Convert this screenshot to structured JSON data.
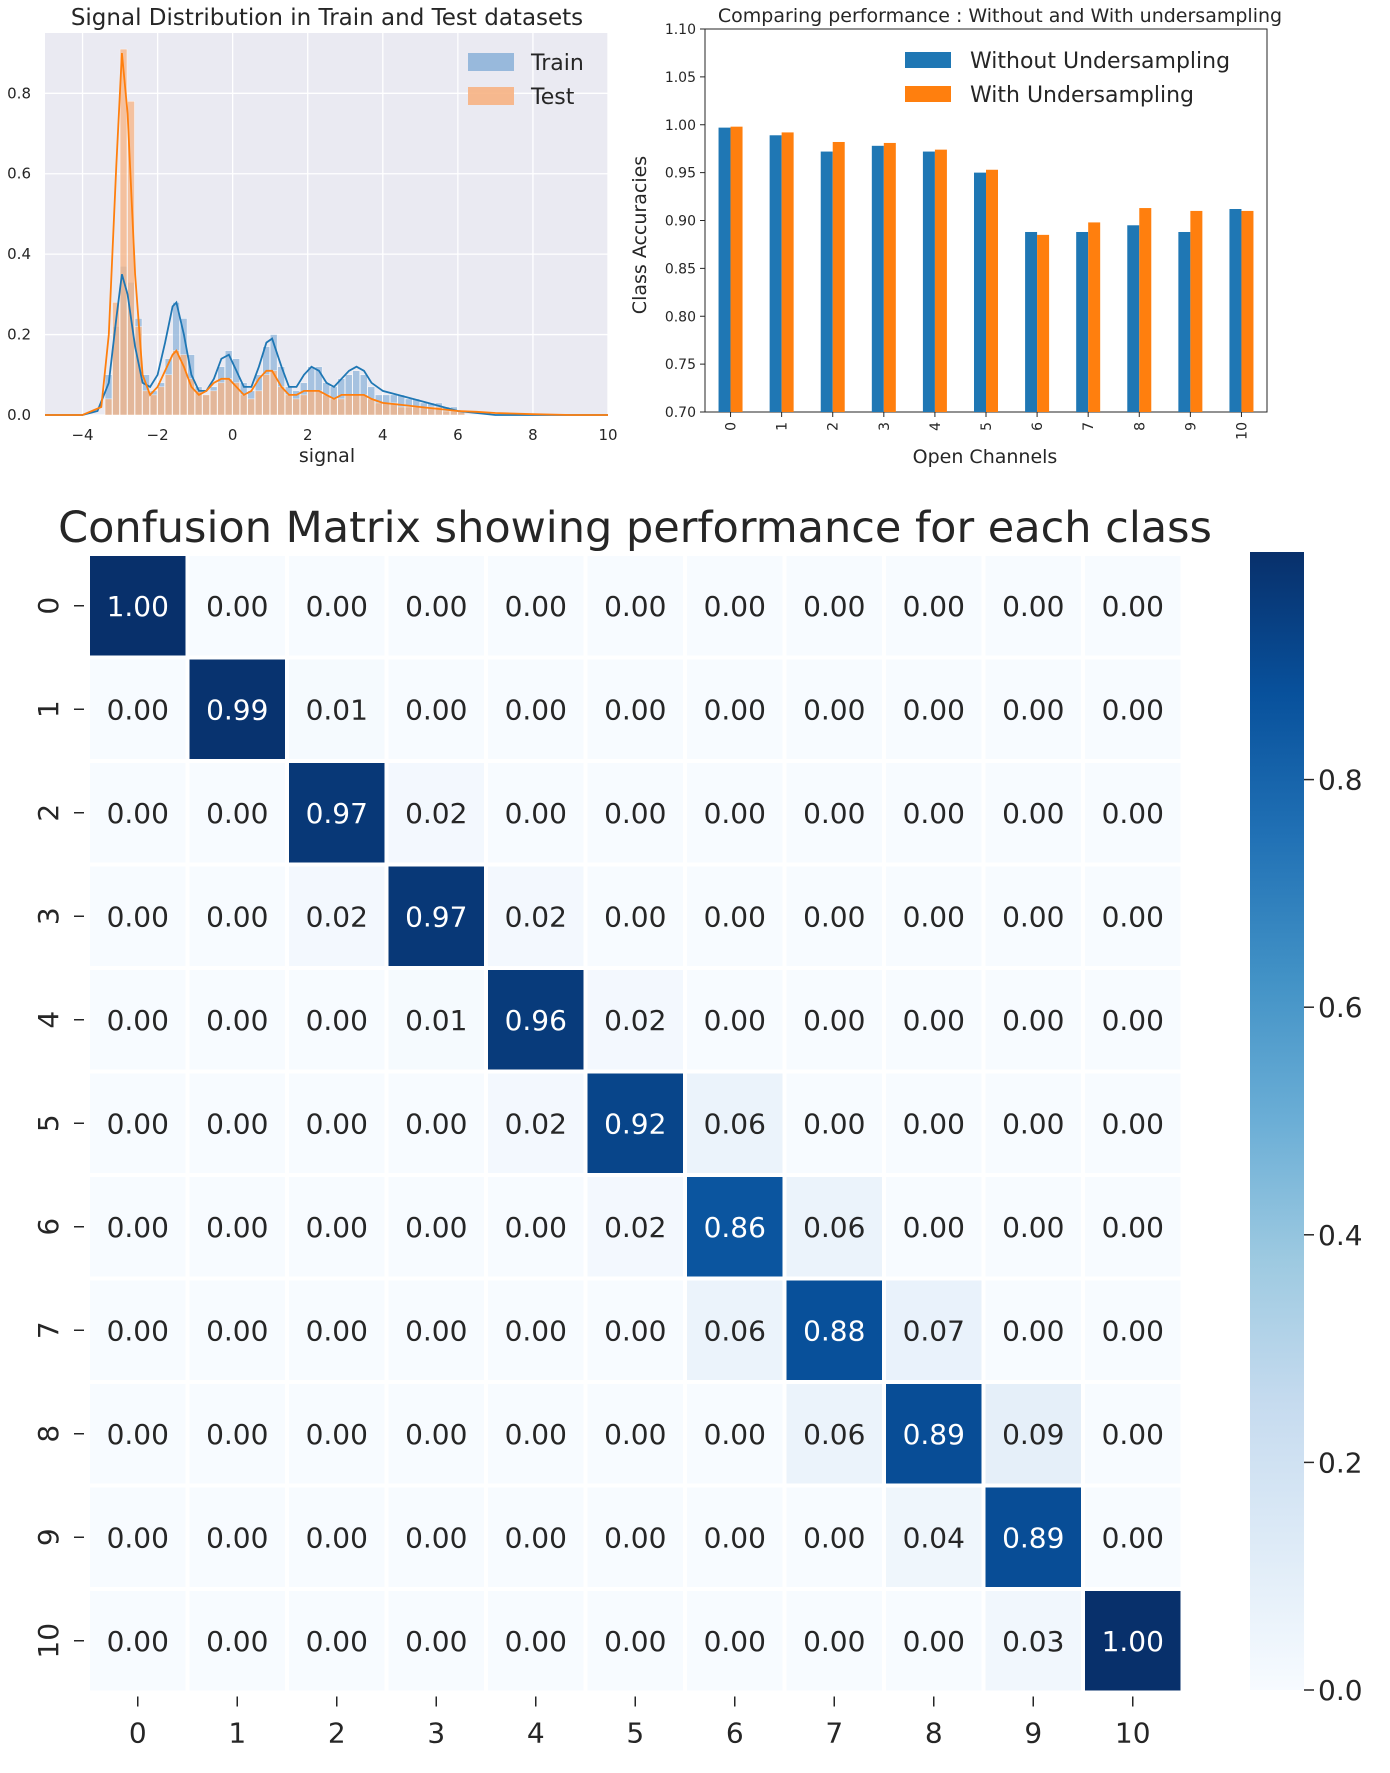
{
  "chart_data": [
    {
      "type": "histogram",
      "title": "Signal Distribution in Train and Test datasets",
      "xlabel": "signal",
      "ylabel": "",
      "xlim": [
        -5,
        10
      ],
      "ylim": [
        0,
        0.95
      ],
      "xticks": [
        -4,
        -2,
        0,
        2,
        4,
        6,
        8,
        10
      ],
      "xtick_labels": [
        "−4",
        "−2",
        "0",
        "2",
        "4",
        "6",
        "8",
        "10"
      ],
      "yticks": [
        0.0,
        0.2,
        0.4,
        0.6,
        0.8
      ],
      "ytick_labels": [
        "0.0",
        "0.2",
        "0.4",
        "0.6",
        "0.8"
      ],
      "grid": true,
      "legend_position": "top-right",
      "series": [
        {
          "name": "Train",
          "color": "#1f77b4",
          "bar_color": "#8fb4d9",
          "bins": [
            [
              -3.4,
              0.1
            ],
            [
              -3.2,
              0.22
            ],
            [
              -3.0,
              0.37
            ],
            [
              -2.8,
              0.33
            ],
            [
              -2.6,
              0.24
            ],
            [
              -2.4,
              0.1
            ],
            [
              -2.2,
              0.06
            ],
            [
              -2.0,
              0.08
            ],
            [
              -1.8,
              0.14
            ],
            [
              -1.6,
              0.28
            ],
            [
              -1.4,
              0.24
            ],
            [
              -1.2,
              0.15
            ],
            [
              -1.0,
              0.07
            ],
            [
              -0.8,
              0.05
            ],
            [
              -0.6,
              0.07
            ],
            [
              -0.4,
              0.12
            ],
            [
              -0.2,
              0.16
            ],
            [
              0.0,
              0.14
            ],
            [
              0.2,
              0.08
            ],
            [
              0.4,
              0.06
            ],
            [
              0.6,
              0.1
            ],
            [
              0.8,
              0.17
            ],
            [
              1.0,
              0.2
            ],
            [
              1.2,
              0.12
            ],
            [
              1.4,
              0.07
            ],
            [
              1.6,
              0.06
            ],
            [
              1.8,
              0.08
            ],
            [
              2.0,
              0.12
            ],
            [
              2.2,
              0.12
            ],
            [
              2.4,
              0.08
            ],
            [
              2.6,
              0.07
            ],
            [
              2.8,
              0.09
            ],
            [
              3.0,
              0.1
            ],
            [
              3.2,
              0.11
            ],
            [
              3.4,
              0.1
            ],
            [
              3.6,
              0.07
            ],
            [
              3.8,
              0.05
            ],
            [
              4.0,
              0.05
            ],
            [
              4.2,
              0.05
            ],
            [
              4.4,
              0.05
            ],
            [
              4.6,
              0.04
            ],
            [
              4.8,
              0.04
            ],
            [
              5.0,
              0.03
            ],
            [
              5.2,
              0.03
            ],
            [
              5.4,
              0.03
            ],
            [
              5.6,
              0.02
            ],
            [
              5.8,
              0.02
            ],
            [
              6.0,
              0.01
            ]
          ],
          "kde": [
            [
              -5.0,
              0.0
            ],
            [
              -4.0,
              0.0
            ],
            [
              -3.6,
              0.01
            ],
            [
              -3.3,
              0.08
            ],
            [
              -3.1,
              0.24
            ],
            [
              -2.95,
              0.35
            ],
            [
              -2.8,
              0.3
            ],
            [
              -2.6,
              0.17
            ],
            [
              -2.4,
              0.08
            ],
            [
              -2.2,
              0.07
            ],
            [
              -2.0,
              0.1
            ],
            [
              -1.8,
              0.18
            ],
            [
              -1.6,
              0.27
            ],
            [
              -1.5,
              0.28
            ],
            [
              -1.3,
              0.2
            ],
            [
              -1.1,
              0.1
            ],
            [
              -0.9,
              0.06
            ],
            [
              -0.7,
              0.06
            ],
            [
              -0.5,
              0.09
            ],
            [
              -0.3,
              0.14
            ],
            [
              -0.1,
              0.15
            ],
            [
              0.1,
              0.11
            ],
            [
              0.3,
              0.07
            ],
            [
              0.5,
              0.07
            ],
            [
              0.7,
              0.12
            ],
            [
              0.9,
              0.18
            ],
            [
              1.05,
              0.19
            ],
            [
              1.3,
              0.12
            ],
            [
              1.5,
              0.07
            ],
            [
              1.7,
              0.07
            ],
            [
              1.9,
              0.1
            ],
            [
              2.1,
              0.12
            ],
            [
              2.3,
              0.11
            ],
            [
              2.5,
              0.08
            ],
            [
              2.7,
              0.07
            ],
            [
              2.9,
              0.09
            ],
            [
              3.1,
              0.11
            ],
            [
              3.3,
              0.12
            ],
            [
              3.5,
              0.11
            ],
            [
              3.7,
              0.08
            ],
            [
              4.0,
              0.06
            ],
            [
              4.4,
              0.05
            ],
            [
              4.8,
              0.04
            ],
            [
              5.2,
              0.03
            ],
            [
              5.6,
              0.02
            ],
            [
              6.0,
              0.01
            ],
            [
              6.5,
              0.005
            ],
            [
              7.0,
              0.0
            ],
            [
              10.0,
              0.0
            ]
          ]
        },
        {
          "name": "Test",
          "color": "#ff7f0e",
          "bar_color": "#f7b383",
          "bins": [
            [
              -3.4,
              0.04
            ],
            [
              -3.2,
              0.28
            ],
            [
              -3.0,
              0.91
            ],
            [
              -2.8,
              0.78
            ],
            [
              -2.6,
              0.22
            ],
            [
              -2.4,
              0.06
            ],
            [
              -2.2,
              0.05
            ],
            [
              -2.0,
              0.07
            ],
            [
              -1.8,
              0.1
            ],
            [
              -1.6,
              0.16
            ],
            [
              -1.4,
              0.15
            ],
            [
              -1.2,
              0.09
            ],
            [
              -1.0,
              0.06
            ],
            [
              -0.8,
              0.05
            ],
            [
              -0.6,
              0.06
            ],
            [
              -0.4,
              0.08
            ],
            [
              -0.2,
              0.09
            ],
            [
              0.0,
              0.08
            ],
            [
              0.2,
              0.05
            ],
            [
              0.4,
              0.04
            ],
            [
              0.6,
              0.06
            ],
            [
              0.8,
              0.1
            ],
            [
              1.0,
              0.11
            ],
            [
              1.2,
              0.07
            ],
            [
              1.4,
              0.05
            ],
            [
              1.6,
              0.04
            ],
            [
              1.8,
              0.05
            ],
            [
              2.0,
              0.06
            ],
            [
              2.2,
              0.06
            ],
            [
              2.4,
              0.05
            ],
            [
              2.6,
              0.04
            ],
            [
              2.8,
              0.04
            ],
            [
              3.0,
              0.05
            ],
            [
              3.2,
              0.05
            ],
            [
              3.4,
              0.05
            ],
            [
              3.6,
              0.04
            ],
            [
              3.8,
              0.03
            ],
            [
              4.0,
              0.03
            ],
            [
              4.2,
              0.03
            ],
            [
              4.4,
              0.02
            ],
            [
              4.6,
              0.02
            ],
            [
              4.8,
              0.02
            ],
            [
              5.0,
              0.02
            ],
            [
              5.2,
              0.02
            ],
            [
              5.4,
              0.02
            ],
            [
              5.6,
              0.01
            ],
            [
              5.8,
              0.01
            ],
            [
              6.0,
              0.01
            ]
          ],
          "kde": [
            [
              -5.0,
              0.0
            ],
            [
              -4.0,
              0.0
            ],
            [
              -3.5,
              0.02
            ],
            [
              -3.3,
              0.2
            ],
            [
              -3.1,
              0.62
            ],
            [
              -2.95,
              0.9
            ],
            [
              -2.8,
              0.75
            ],
            [
              -2.6,
              0.35
            ],
            [
              -2.4,
              0.1
            ],
            [
              -2.2,
              0.05
            ],
            [
              -2.0,
              0.07
            ],
            [
              -1.8,
              0.11
            ],
            [
              -1.6,
              0.15
            ],
            [
              -1.5,
              0.16
            ],
            [
              -1.3,
              0.12
            ],
            [
              -1.1,
              0.07
            ],
            [
              -0.9,
              0.05
            ],
            [
              -0.7,
              0.06
            ],
            [
              -0.5,
              0.08
            ],
            [
              -0.3,
              0.09
            ],
            [
              -0.1,
              0.09
            ],
            [
              0.1,
              0.07
            ],
            [
              0.3,
              0.05
            ],
            [
              0.5,
              0.06
            ],
            [
              0.7,
              0.09
            ],
            [
              0.9,
              0.11
            ],
            [
              1.05,
              0.11
            ],
            [
              1.3,
              0.07
            ],
            [
              1.5,
              0.05
            ],
            [
              1.7,
              0.05
            ],
            [
              1.9,
              0.06
            ],
            [
              2.1,
              0.06
            ],
            [
              2.3,
              0.06
            ],
            [
              2.5,
              0.05
            ],
            [
              2.7,
              0.04
            ],
            [
              2.9,
              0.05
            ],
            [
              3.1,
              0.05
            ],
            [
              3.3,
              0.05
            ],
            [
              3.5,
              0.05
            ],
            [
              3.7,
              0.04
            ],
            [
              4.0,
              0.03
            ],
            [
              4.5,
              0.025
            ],
            [
              5.0,
              0.02
            ],
            [
              5.5,
              0.015
            ],
            [
              6.0,
              0.01
            ],
            [
              6.5,
              0.008
            ],
            [
              7.0,
              0.005
            ],
            [
              8.0,
              0.002
            ],
            [
              9.0,
              0.0
            ],
            [
              10.0,
              0.0
            ]
          ]
        }
      ]
    },
    {
      "type": "bar",
      "title": "Comparing performance : Without and With undersampling",
      "xlabel": "Open Channels",
      "ylabel": "Class Accuracies",
      "ylim": [
        0.7,
        1.1
      ],
      "yticks": [
        0.7,
        0.75,
        0.8,
        0.85,
        0.9,
        0.95,
        1.0,
        1.05,
        1.1
      ],
      "ytick_labels": [
        "0.70",
        "0.75",
        "0.80",
        "0.85",
        "0.90",
        "0.95",
        "1.00",
        "1.05",
        "1.10"
      ],
      "categories": [
        "0",
        "1",
        "2",
        "3",
        "4",
        "5",
        "6",
        "7",
        "8",
        "9",
        "10"
      ],
      "grid": false,
      "legend_position": "top-right",
      "series": [
        {
          "name": "Without Undersampling",
          "color": "#1f77b4",
          "values": [
            0.997,
            0.989,
            0.972,
            0.978,
            0.972,
            0.95,
            0.888,
            0.888,
            0.895,
            0.888,
            0.912
          ]
        },
        {
          "name": "With Undersampling",
          "color": "#ff7f0e",
          "values": [
            0.998,
            0.992,
            0.982,
            0.981,
            0.974,
            0.953,
            0.885,
            0.898,
            0.913,
            0.91,
            0.91
          ]
        }
      ]
    },
    {
      "type": "heatmap",
      "title": "Confusion Matrix showing performance for each class",
      "xlabel": "",
      "ylabel": "",
      "row_labels": [
        "0",
        "1",
        "2",
        "3",
        "4",
        "5",
        "6",
        "7",
        "8",
        "9",
        "10"
      ],
      "col_labels": [
        "0",
        "1",
        "2",
        "3",
        "4",
        "5",
        "6",
        "7",
        "8",
        "9",
        "10"
      ],
      "colormap": "Blues",
      "colorbar_ticks": [
        0.0,
        0.2,
        0.4,
        0.6,
        0.8
      ],
      "colorbar_tick_labels": [
        "0.0",
        "0.2",
        "0.4",
        "0.6",
        "0.8"
      ],
      "colorbar_range": [
        0,
        1
      ],
      "values": [
        [
          1.0,
          0.0,
          0.0,
          0.0,
          0.0,
          0.0,
          0.0,
          0.0,
          0.0,
          0.0,
          0.0
        ],
        [
          0.0,
          0.99,
          0.01,
          0.0,
          0.0,
          0.0,
          0.0,
          0.0,
          0.0,
          0.0,
          0.0
        ],
        [
          0.0,
          0.0,
          0.97,
          0.02,
          0.0,
          0.0,
          0.0,
          0.0,
          0.0,
          0.0,
          0.0
        ],
        [
          0.0,
          0.0,
          0.02,
          0.97,
          0.02,
          0.0,
          0.0,
          0.0,
          0.0,
          0.0,
          0.0
        ],
        [
          0.0,
          0.0,
          0.0,
          0.01,
          0.96,
          0.02,
          0.0,
          0.0,
          0.0,
          0.0,
          0.0
        ],
        [
          0.0,
          0.0,
          0.0,
          0.0,
          0.02,
          0.92,
          0.06,
          0.0,
          0.0,
          0.0,
          0.0
        ],
        [
          0.0,
          0.0,
          0.0,
          0.0,
          0.0,
          0.02,
          0.86,
          0.06,
          0.0,
          0.0,
          0.0
        ],
        [
          0.0,
          0.0,
          0.0,
          0.0,
          0.0,
          0.0,
          0.06,
          0.88,
          0.07,
          0.0,
          0.0
        ],
        [
          0.0,
          0.0,
          0.0,
          0.0,
          0.0,
          0.0,
          0.0,
          0.06,
          0.89,
          0.09,
          0.0
        ],
        [
          0.0,
          0.0,
          0.0,
          0.0,
          0.0,
          0.0,
          0.0,
          0.0,
          0.04,
          0.89,
          0.0
        ],
        [
          0.0,
          0.0,
          0.0,
          0.0,
          0.0,
          0.0,
          0.0,
          0.0,
          0.0,
          0.03,
          1.0
        ]
      ]
    }
  ]
}
